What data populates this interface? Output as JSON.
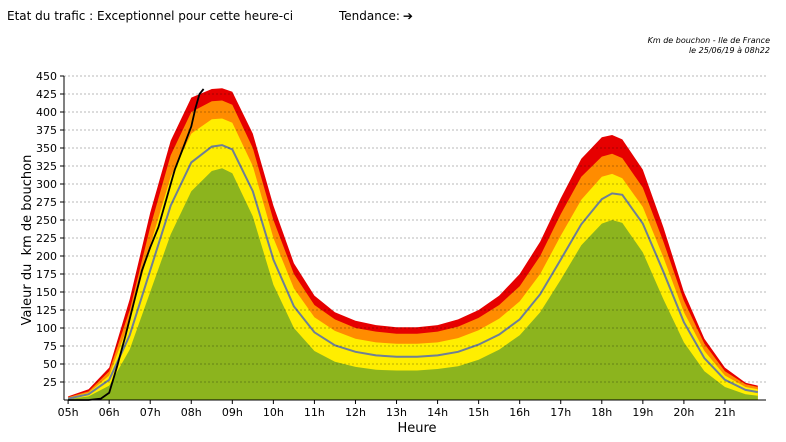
{
  "header": {
    "status_label": "Etat du trafic",
    "status_separator": " : ",
    "status_value": "Exceptionnel pour cette heure-ci",
    "trend_label": "Tendance:",
    "trend_icon": "arrow-right-icon"
  },
  "caption": {
    "line1": "Km de bouchon - Ile de France",
    "line2": "le 25/06/19 à 08h22"
  },
  "colors": {
    "band_red": "#e60000",
    "band_orange": "#ff8c00",
    "band_yellow": "#ffee00",
    "band_green": "#8cb41e",
    "mean_line": "#6e7f96",
    "today_line": "#000000"
  },
  "chart_data": {
    "type": "area",
    "title": "",
    "xlabel": "Heure",
    "ylabel": "Valeur du  km de bouchon",
    "xlim": [
      4.9,
      22.0
    ],
    "ylim": [
      0,
      450
    ],
    "yticks": [
      25,
      50,
      75,
      100,
      125,
      150,
      175,
      200,
      225,
      250,
      275,
      300,
      325,
      350,
      375,
      400,
      425,
      450
    ],
    "xticks": [
      {
        "v": 5,
        "label": "05h"
      },
      {
        "v": 6,
        "label": "06h"
      },
      {
        "v": 7,
        "label": "07h"
      },
      {
        "v": 8,
        "label": "08h"
      },
      {
        "v": 9,
        "label": "09h"
      },
      {
        "v": 10,
        "label": "10h"
      },
      {
        "v": 11,
        "label": "11h"
      },
      {
        "v": 12,
        "label": "12h"
      },
      {
        "v": 13,
        "label": "13h"
      },
      {
        "v": 14,
        "label": "14h"
      },
      {
        "v": 15,
        "label": "15h"
      },
      {
        "v": 16,
        "label": "16h"
      },
      {
        "v": 17,
        "label": "17h"
      },
      {
        "v": 18,
        "label": "18h"
      },
      {
        "v": 19,
        "label": "19h"
      },
      {
        "v": 20,
        "label": "20h"
      },
      {
        "v": 21,
        "label": "21h"
      }
    ],
    "grid": true,
    "x": [
      5.0,
      5.5,
      6.0,
      6.5,
      7.0,
      7.5,
      8.0,
      8.5,
      8.75,
      9.0,
      9.5,
      10.0,
      10.5,
      11.0,
      11.5,
      12.0,
      12.5,
      13.0,
      13.5,
      14.0,
      14.5,
      15.0,
      15.5,
      16.0,
      16.5,
      17.0,
      17.5,
      18.0,
      18.25,
      18.5,
      19.0,
      19.5,
      20.0,
      20.5,
      21.0,
      21.5,
      21.8
    ],
    "series": [
      {
        "values": [
          5,
          15,
          45,
          140,
          260,
          360,
          420,
          432,
          433,
          428,
          370,
          270,
          190,
          145,
          122,
          110,
          104,
          101,
          101,
          104,
          112,
          125,
          145,
          175,
          220,
          280,
          335,
          365,
          368,
          362,
          320,
          240,
          150,
          85,
          45,
          24,
          20
        ]
      },
      {
        "values": [
          4,
          12,
          40,
          125,
          240,
          340,
          400,
          415,
          416,
          410,
          350,
          250,
          175,
          132,
          112,
          100,
          95,
          92,
          92,
          95,
          102,
          114,
          132,
          158,
          200,
          258,
          310,
          338,
          342,
          336,
          295,
          220,
          138,
          78,
          40,
          22,
          18
        ]
      },
      {
        "values": [
          3,
          10,
          34,
          110,
          215,
          310,
          370,
          390,
          391,
          385,
          325,
          225,
          155,
          115,
          96,
          85,
          80,
          78,
          78,
          80,
          86,
          97,
          113,
          137,
          175,
          228,
          278,
          310,
          314,
          308,
          268,
          198,
          122,
          68,
          34,
          18,
          15
        ]
      },
      {
        "values": [
          2,
          8,
          28,
          90,
          180,
          270,
          330,
          352,
          354,
          348,
          290,
          195,
          130,
          94,
          76,
          67,
          62,
          60,
          60,
          62,
          67,
          77,
          91,
          112,
          147,
          195,
          244,
          279,
          287,
          285,
          245,
          178,
          108,
          58,
          28,
          14,
          11
        ]
      },
      {
        "values": [
          1,
          5,
          20,
          70,
          150,
          230,
          290,
          318,
          322,
          315,
          255,
          160,
          100,
          68,
          53,
          46,
          42,
          41,
          41,
          43,
          47,
          56,
          70,
          90,
          122,
          167,
          215,
          245,
          250,
          246,
          205,
          140,
          80,
          40,
          18,
          8,
          6
        ]
      }
    ],
    "today": {
      "x": [
        5.0,
        5.5,
        5.8,
        6.0,
        6.2,
        6.4,
        6.6,
        6.8,
        7.0,
        7.2,
        7.4,
        7.6,
        7.8,
        8.0,
        8.1,
        8.2,
        8.3
      ],
      "values": [
        0,
        0,
        2,
        10,
        48,
        90,
        135,
        180,
        212,
        240,
        280,
        320,
        350,
        380,
        405,
        425,
        432
      ]
    }
  }
}
